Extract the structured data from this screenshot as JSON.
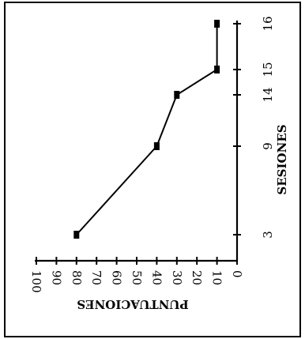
{
  "chart_data": {
    "type": "line",
    "orientation": "rotated-90-clockwise",
    "xlabel": "SESIONES",
    "ylabel": "PUNTUACIONES",
    "x_categories": [
      "3",
      "9",
      "14",
      "15",
      "16"
    ],
    "ylim": [
      0,
      100
    ],
    "y_ticks": [
      "0",
      "10",
      "20",
      "30",
      "40",
      "50",
      "60",
      "70",
      "80",
      "90",
      "100"
    ],
    "grid": false,
    "legend": "none",
    "series": [
      {
        "points": [
          {
            "x": "3",
            "y": 80
          },
          {
            "x": "9",
            "y": 40
          },
          {
            "x": "14",
            "y": 30
          },
          {
            "x": "15",
            "y": 10
          },
          {
            "x": "16",
            "y": 10
          }
        ]
      }
    ]
  }
}
